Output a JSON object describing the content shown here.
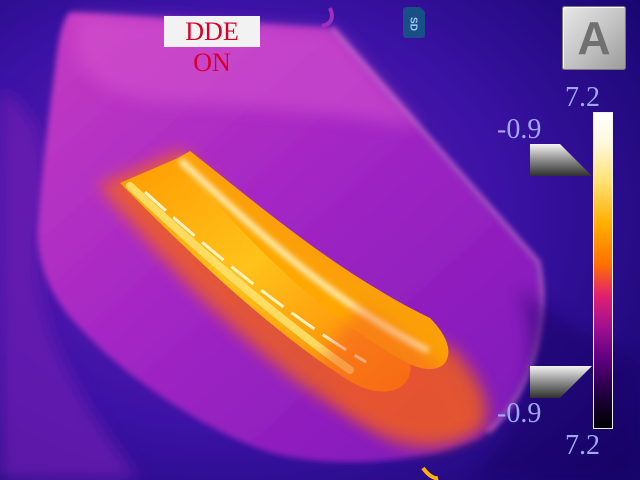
{
  "overlay": {
    "mode_label": "DDE ON",
    "storage_icon": "sd-card-icon",
    "storage_label": "SD",
    "mode_button_label": "A"
  },
  "scale": {
    "max_top": "7.2",
    "max_bottom": "7.2",
    "upper_marker_value": "-0.9",
    "lower_marker_value": "-0.9"
  },
  "palette": {
    "background": "#2a0a8a",
    "hot": "#ffffff",
    "warm": "#ffb000",
    "mid": "#d23a9a",
    "cool": "#4b0aa0"
  }
}
